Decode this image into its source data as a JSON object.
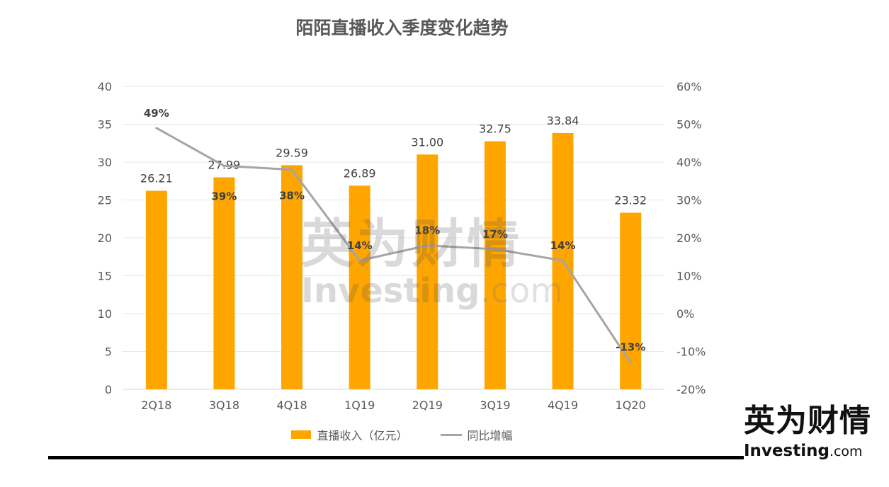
{
  "chart_data": {
    "type": "bar",
    "title": "陌陌直播收入季度变化趋势",
    "categories": [
      "2Q18",
      "3Q18",
      "4Q18",
      "1Q19",
      "2Q19",
      "3Q19",
      "4Q19",
      "1Q20"
    ],
    "series": [
      {
        "name": "直播收入（亿元）",
        "type": "bar",
        "axis": "left",
        "color": "#FFA500",
        "values": [
          26.21,
          27.99,
          29.59,
          26.89,
          31.0,
          32.75,
          33.84,
          23.32
        ],
        "value_labels": [
          "26.21",
          "27.99",
          "29.59",
          "26.89",
          "31.00",
          "32.75",
          "33.84",
          "23.32"
        ]
      },
      {
        "name": "同比增幅",
        "type": "line",
        "axis": "right",
        "color": "#A5A5A5",
        "values": [
          49,
          39,
          38,
          14,
          18,
          17,
          14,
          -13
        ],
        "value_labels": [
          "49%",
          "39%",
          "38%",
          "14%",
          "18%",
          "17%",
          "14%",
          "-13%"
        ]
      }
    ],
    "y_left": {
      "min": 0,
      "max": 40,
      "ticks": [
        "0",
        "5",
        "10",
        "15",
        "20",
        "25",
        "30",
        "35",
        "40"
      ]
    },
    "y_right": {
      "min": -20,
      "max": 60,
      "ticks": [
        "-20%",
        "-10%",
        "0%",
        "10%",
        "20%",
        "30%",
        "40%",
        "50%",
        "60%"
      ]
    },
    "grid": true,
    "legend_position": "bottom"
  },
  "watermark": {
    "cn": "英为财情",
    "en_main": "Investing",
    "en_suffix": ".com"
  },
  "logo": {
    "cn": "英为财情",
    "en_main": "Investing",
    "en_suffix": ".com"
  }
}
